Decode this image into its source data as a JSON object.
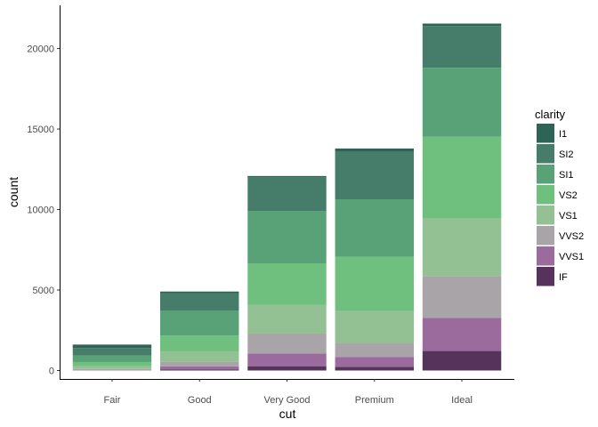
{
  "chart_data": {
    "type": "bar",
    "stacked": true,
    "categories": [
      "Fair",
      "Good",
      "Very Good",
      "Premium",
      "Ideal"
    ],
    "xlabel": "cut",
    "ylabel": "count",
    "ylim": [
      0,
      21551
    ],
    "yticks": [
      0,
      5000,
      10000,
      15000,
      20000
    ],
    "grid": false,
    "legend": {
      "title": "clarity",
      "position": "right"
    },
    "series": [
      {
        "name": "I1",
        "color": "#2D6456",
        "values": [
          210,
          96,
          84,
          205,
          146
        ]
      },
      {
        "name": "SI2",
        "color": "#467D6A",
        "values": [
          466,
          1081,
          2100,
          2949,
          2598
        ]
      },
      {
        "name": "SI1",
        "color": "#59A277",
        "values": [
          408,
          1560,
          3240,
          3575,
          4282
        ]
      },
      {
        "name": "VS2",
        "color": "#6FBF7F",
        "values": [
          261,
          978,
          2591,
          3357,
          5071
        ]
      },
      {
        "name": "VS1",
        "color": "#93C194",
        "values": [
          170,
          648,
          1775,
          1989,
          3589
        ]
      },
      {
        "name": "VVS2",
        "color": "#A8A4A8",
        "values": [
          69,
          286,
          1235,
          870,
          2606
        ]
      },
      {
        "name": "VVS1",
        "color": "#9B6B9E",
        "values": [
          17,
          186,
          789,
          616,
          2047
        ]
      },
      {
        "name": "IF",
        "color": "#55335A",
        "values": [
          9,
          71,
          268,
          230,
          1212
        ]
      }
    ]
  }
}
